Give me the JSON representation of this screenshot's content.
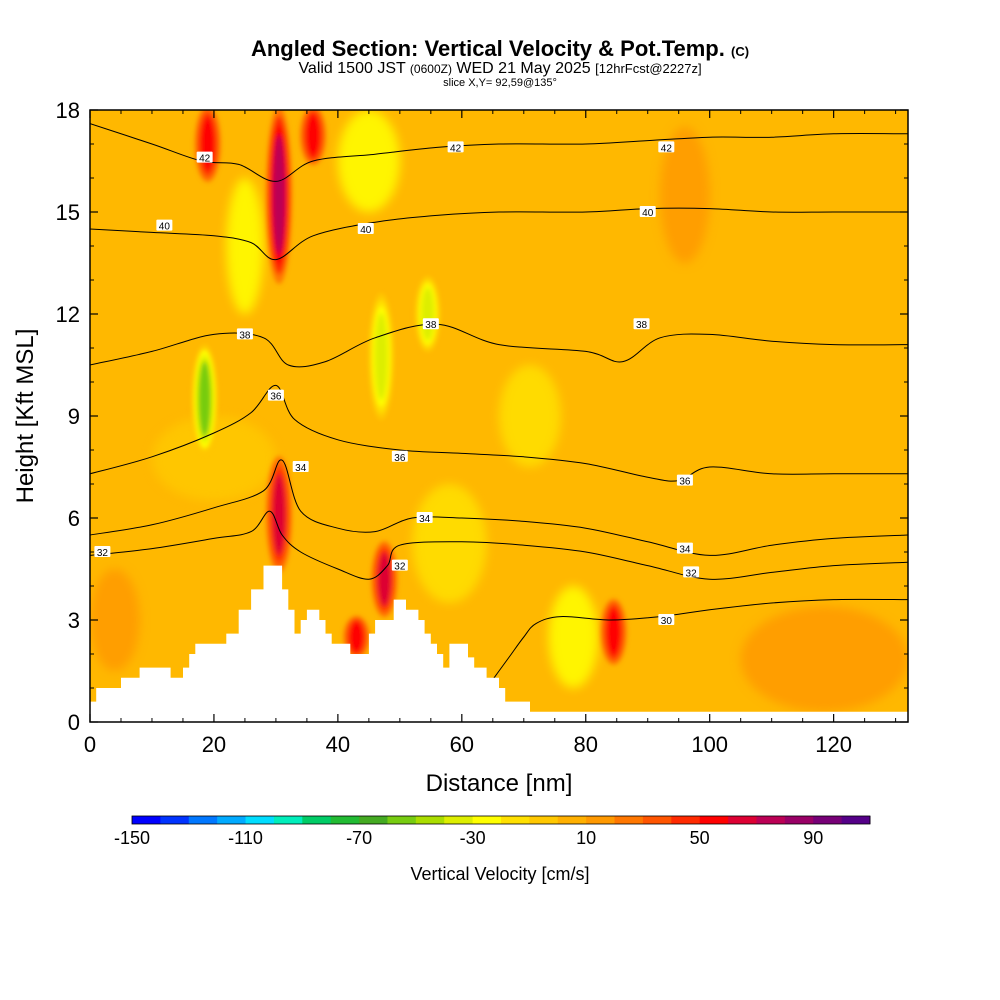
{
  "title": "Angled Section: Vertical Velocity & Pot.Temp.",
  "title_unit": "(C)",
  "subtitle": {
    "valid": "Valid 1500 JST",
    "zulu": "(0600Z)",
    "date": "WED 21 May 2025",
    "fcst": "[12hrFcst@2227z]"
  },
  "slice_label": "slice X,Y= 92,59@135°",
  "colorbar": {
    "label": "Vertical Velocity [cm/s]",
    "tick_labels": [
      "-150",
      "-110",
      "-70",
      "-30",
      "10",
      "50",
      "90"
    ],
    "colors": [
      "#0000ff",
      "#0033ff",
      "#0077ff",
      "#00aaff",
      "#00ddff",
      "#00eebb",
      "#00cc66",
      "#22bb33",
      "#44aa22",
      "#77cc11",
      "#aadd00",
      "#ddee00",
      "#ffff00",
      "#ffe000",
      "#ffc800",
      "#ffb000",
      "#ff9900",
      "#ff7700",
      "#ff5500",
      "#ff2a00",
      "#ff0000",
      "#dd0033",
      "#bb0055",
      "#990066",
      "#770077",
      "#550088"
    ]
  },
  "chart_data": {
    "type": "heatmap",
    "xlabel": "Distance [nm]",
    "ylabel": "Height [Kft MSL]",
    "xlim": [
      0,
      132
    ],
    "ylim": [
      0,
      18
    ],
    "x_ticks": [
      0,
      20,
      40,
      60,
      80,
      100,
      120
    ],
    "y_ticks": [
      0,
      3,
      6,
      9,
      12,
      15,
      18
    ],
    "background_range": "10",
    "updraft_cores": [
      {
        "x": 30.5,
        "y_from": 13,
        "y_to": 18,
        "value": 70
      },
      {
        "x": 30.5,
        "y_from": 4.5,
        "y_to": 7.7,
        "value": 60
      },
      {
        "x": 19,
        "y_from": 16,
        "y_to": 18,
        "value": 50
      },
      {
        "x": 36,
        "y_from": 16.5,
        "y_to": 18,
        "value": 50
      },
      {
        "x": 47.5,
        "y_from": 3.2,
        "y_to": 5.2,
        "value": 60
      },
      {
        "x": 43,
        "y_from": 2,
        "y_to": 3,
        "value": 50
      },
      {
        "x": 84.5,
        "y_from": 1.8,
        "y_to": 3.5,
        "value": 50
      }
    ],
    "downdraft_cores": [
      {
        "x": 18.5,
        "y_from": 8,
        "y_to": 11,
        "value": -55
      },
      {
        "x": 47,
        "y_from": 9,
        "y_to": 12.5,
        "value": -35
      },
      {
        "x": 54.5,
        "y_from": 11,
        "y_to": 13,
        "value": -35
      }
    ],
    "isentropes": [
      {
        "level": 30,
        "points": [
          [
            64,
            1
          ],
          [
            66,
            1.5
          ],
          [
            68,
            2
          ],
          [
            70,
            2.5
          ],
          [
            72,
            2.9
          ],
          [
            76,
            3.1
          ],
          [
            84,
            3.0
          ],
          [
            92,
            3.1
          ],
          [
            100,
            3.3
          ],
          [
            110,
            3.5
          ],
          [
            120,
            3.6
          ],
          [
            132,
            3.6
          ]
        ]
      },
      {
        "level": 32,
        "points": [
          [
            0,
            4.9
          ],
          [
            10,
            5.1
          ],
          [
            20,
            5.4
          ],
          [
            26,
            5.6
          ],
          [
            29,
            6.2
          ],
          [
            31,
            5.5
          ],
          [
            34,
            5.0
          ],
          [
            40,
            4.5
          ],
          [
            45,
            4.2
          ],
          [
            48,
            4.6
          ],
          [
            50,
            5.2
          ],
          [
            60,
            5.3
          ],
          [
            70,
            5.2
          ],
          [
            80,
            5.0
          ],
          [
            90,
            4.6
          ],
          [
            100,
            4.2
          ],
          [
            110,
            4.4
          ],
          [
            120,
            4.6
          ],
          [
            132,
            4.7
          ]
        ]
      },
      {
        "level": 34,
        "points": [
          [
            0,
            5.5
          ],
          [
            10,
            5.8
          ],
          [
            20,
            6.3
          ],
          [
            28,
            6.8
          ],
          [
            31,
            7.7
          ],
          [
            34,
            6.2
          ],
          [
            40,
            5.7
          ],
          [
            46,
            5.6
          ],
          [
            52,
            6.0
          ],
          [
            60,
            6.0
          ],
          [
            70,
            5.9
          ],
          [
            80,
            5.7
          ],
          [
            90,
            5.3
          ],
          [
            100,
            4.9
          ],
          [
            110,
            5.2
          ],
          [
            120,
            5.4
          ],
          [
            132,
            5.5
          ]
        ]
      },
      {
        "level": 36,
        "points": [
          [
            0,
            7.3
          ],
          [
            10,
            7.8
          ],
          [
            20,
            8.5
          ],
          [
            26,
            9.1
          ],
          [
            30,
            9.9
          ],
          [
            33,
            8.9
          ],
          [
            40,
            8.3
          ],
          [
            50,
            8.0
          ],
          [
            60,
            7.9
          ],
          [
            70,
            7.8
          ],
          [
            80,
            7.6
          ],
          [
            90,
            7.2
          ],
          [
            95,
            7.1
          ],
          [
            100,
            7.5
          ],
          [
            110,
            7.3
          ],
          [
            120,
            7.3
          ],
          [
            132,
            7.3
          ]
        ]
      },
      {
        "level": 38,
        "points": [
          [
            0,
            10.5
          ],
          [
            10,
            10.9
          ],
          [
            20,
            11.4
          ],
          [
            28,
            11.3
          ],
          [
            32,
            10.5
          ],
          [
            38,
            10.6
          ],
          [
            46,
            11.3
          ],
          [
            56,
            11.7
          ],
          [
            66,
            11.1
          ],
          [
            80,
            10.9
          ],
          [
            86,
            10.6
          ],
          [
            92,
            11.3
          ],
          [
            100,
            11.4
          ],
          [
            110,
            11.2
          ],
          [
            120,
            11.1
          ],
          [
            132,
            11.1
          ]
        ]
      },
      {
        "level": 40,
        "points": [
          [
            0,
            14.5
          ],
          [
            10,
            14.4
          ],
          [
            20,
            14.3
          ],
          [
            26,
            14.1
          ],
          [
            30,
            13.6
          ],
          [
            36,
            14.3
          ],
          [
            46,
            14.7
          ],
          [
            56,
            14.9
          ],
          [
            66,
            15.0
          ],
          [
            80,
            15.0
          ],
          [
            90,
            15.1
          ],
          [
            100,
            15.1
          ],
          [
            110,
            15.0
          ],
          [
            120,
            15.0
          ],
          [
            132,
            15.0
          ]
        ]
      },
      {
        "level": 42,
        "points": [
          [
            0,
            17.6
          ],
          [
            10,
            17.0
          ],
          [
            18,
            16.5
          ],
          [
            24,
            16.4
          ],
          [
            30,
            15.9
          ],
          [
            36,
            16.5
          ],
          [
            46,
            16.7
          ],
          [
            56,
            16.9
          ],
          [
            66,
            17.0
          ],
          [
            80,
            17.0
          ],
          [
            90,
            17.1
          ],
          [
            100,
            17.2
          ],
          [
            110,
            17.2
          ],
          [
            120,
            17.3
          ],
          [
            132,
            17.3
          ]
        ]
      }
    ],
    "contour_labels": [
      {
        "text": "42",
        "x": 18.5,
        "y": 16.6
      },
      {
        "text": "42",
        "x": 59,
        "y": 16.9
      },
      {
        "text": "42",
        "x": 93,
        "y": 16.9
      },
      {
        "text": "40",
        "x": 12,
        "y": 14.6
      },
      {
        "text": "40",
        "x": 44.5,
        "y": 14.5
      },
      {
        "text": "40",
        "x": 90,
        "y": 15.0
      },
      {
        "text": "38",
        "x": 25,
        "y": 11.4
      },
      {
        "text": "38",
        "x": 55,
        "y": 11.7
      },
      {
        "text": "38",
        "x": 89,
        "y": 11.7
      },
      {
        "text": "36",
        "x": 30,
        "y": 9.6
      },
      {
        "text": "36",
        "x": 50,
        "y": 7.8
      },
      {
        "text": "36",
        "x": 96,
        "y": 7.1
      },
      {
        "text": "34",
        "x": 34,
        "y": 7.5
      },
      {
        "text": "34",
        "x": 54,
        "y": 6.0
      },
      {
        "text": "34",
        "x": 96,
        "y": 5.1
      },
      {
        "text": "32",
        "x": 2,
        "y": 5.0
      },
      {
        "text": "32",
        "x": 50,
        "y": 4.6
      },
      {
        "text": "32",
        "x": 97,
        "y": 4.4
      },
      {
        "text": "30",
        "x": 93,
        "y": 3.0
      }
    ],
    "terrain": [
      [
        0,
        0.6
      ],
      [
        1,
        0.6
      ],
      [
        1,
        1.0
      ],
      [
        5,
        1.0
      ],
      [
        5,
        1.3
      ],
      [
        8,
        1.3
      ],
      [
        8,
        1.6
      ],
      [
        13,
        1.6
      ],
      [
        13,
        1.3
      ],
      [
        15,
        1.3
      ],
      [
        15,
        1.6
      ],
      [
        16,
        1.6
      ],
      [
        16,
        2.0
      ],
      [
        17,
        2.0
      ],
      [
        17,
        2.3
      ],
      [
        22,
        2.3
      ],
      [
        22,
        2.6
      ],
      [
        24,
        2.6
      ],
      [
        24,
        3.3
      ],
      [
        26,
        3.3
      ],
      [
        26,
        3.9
      ],
      [
        28,
        3.9
      ],
      [
        28,
        4.6
      ],
      [
        31,
        4.6
      ],
      [
        31,
        3.9
      ],
      [
        32,
        3.9
      ],
      [
        32,
        3.3
      ],
      [
        33,
        3.3
      ],
      [
        33,
        2.6
      ],
      [
        34,
        2.6
      ],
      [
        34,
        3.0
      ],
      [
        35,
        3.0
      ],
      [
        35,
        3.3
      ],
      [
        37,
        3.3
      ],
      [
        37,
        3.0
      ],
      [
        38,
        3.0
      ],
      [
        38,
        2.6
      ],
      [
        39,
        2.6
      ],
      [
        39,
        2.3
      ],
      [
        42,
        2.3
      ],
      [
        42,
        2.0
      ],
      [
        45,
        2.0
      ],
      [
        45,
        2.6
      ],
      [
        46,
        2.6
      ],
      [
        46,
        3.0
      ],
      [
        49,
        3.0
      ],
      [
        49,
        3.6
      ],
      [
        51,
        3.6
      ],
      [
        51,
        3.3
      ],
      [
        53,
        3.3
      ],
      [
        53,
        3.0
      ],
      [
        54,
        3.0
      ],
      [
        54,
        2.6
      ],
      [
        55,
        2.6
      ],
      [
        55,
        2.3
      ],
      [
        56,
        2.3
      ],
      [
        56,
        2.0
      ],
      [
        57,
        2.0
      ],
      [
        57,
        1.6
      ],
      [
        58,
        1.6
      ],
      [
        58,
        2.3
      ],
      [
        61,
        2.3
      ],
      [
        61,
        1.9
      ],
      [
        62,
        1.9
      ],
      [
        62,
        1.6
      ],
      [
        64,
        1.6
      ],
      [
        64,
        1.3
      ],
      [
        66,
        1.3
      ],
      [
        66,
        1.0
      ],
      [
        67,
        1.0
      ],
      [
        67,
        0.6
      ],
      [
        71,
        0.6
      ],
      [
        71,
        0.3
      ],
      [
        132,
        0.3
      ],
      [
        132,
        0
      ],
      [
        0,
        0
      ]
    ]
  }
}
